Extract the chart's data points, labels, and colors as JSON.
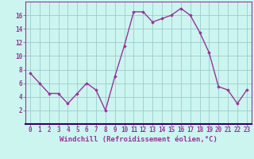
{
  "x": [
    0,
    1,
    2,
    3,
    4,
    5,
    6,
    7,
    8,
    9,
    10,
    11,
    12,
    13,
    14,
    15,
    16,
    17,
    18,
    19,
    20,
    21,
    22,
    23
  ],
  "y": [
    7.5,
    6.0,
    4.5,
    4.5,
    3.0,
    4.5,
    6.0,
    5.0,
    2.0,
    7.0,
    11.5,
    16.5,
    16.5,
    15.0,
    15.5,
    16.0,
    17.0,
    16.0,
    13.5,
    10.5,
    5.5,
    5.0,
    3.0,
    5.0
  ],
  "line_color": "#993399",
  "marker": "D",
  "marker_size": 1.8,
  "bg_color": "#ccf5f0",
  "plot_bg_color": "#ccf5f0",
  "grid_color": "#99cccc",
  "xlabel": "Windchill (Refroidissement éolien,°C)",
  "xlabel_fontsize": 6.5,
  "xlabel_color": "#993399",
  "tick_color": "#993399",
  "tick_fontsize": 5.5,
  "ylim": [
    0,
    18
  ],
  "xlim": [
    -0.5,
    23.5
  ],
  "yticks": [
    2,
    4,
    6,
    8,
    10,
    12,
    14,
    16
  ],
  "xticks": [
    0,
    1,
    2,
    3,
    4,
    5,
    6,
    7,
    8,
    9,
    10,
    11,
    12,
    13,
    14,
    15,
    16,
    17,
    18,
    19,
    20,
    21,
    22,
    23
  ],
  "line_width": 1.0,
  "border_color": "#993399",
  "separator_color": "#330066"
}
